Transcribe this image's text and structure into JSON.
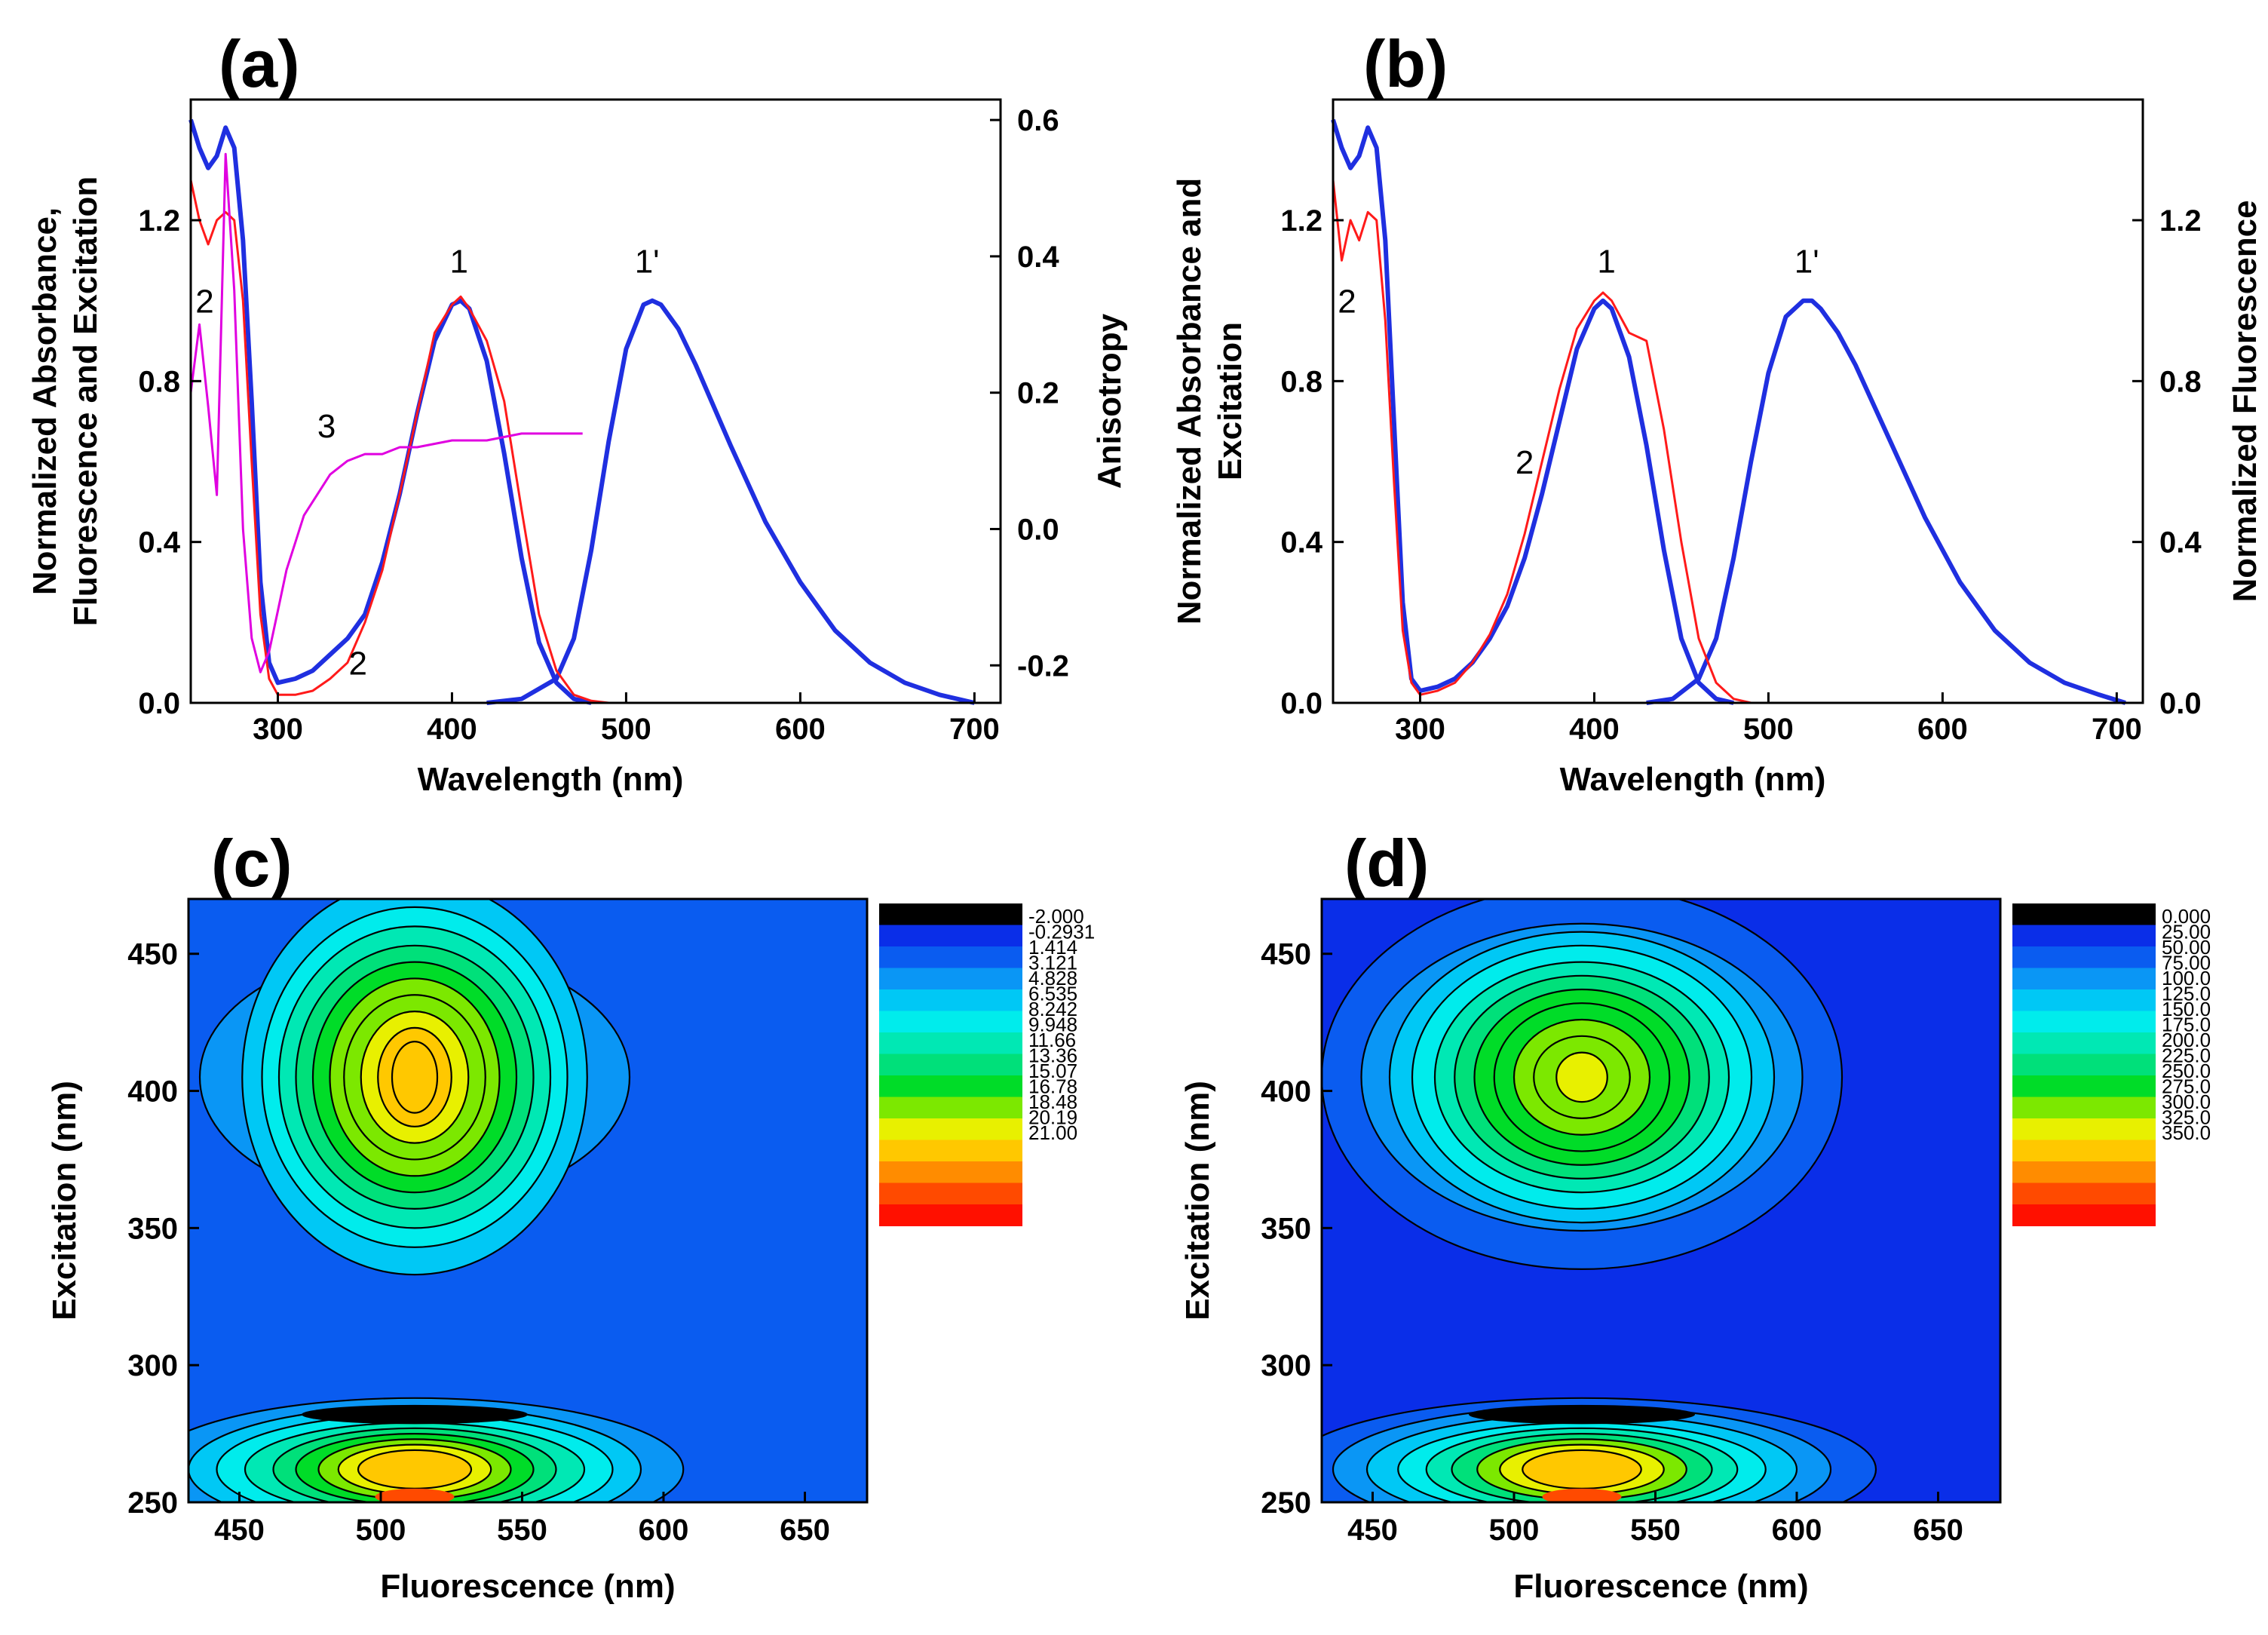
{
  "chart_data": [
    {
      "panel_label": "(a)",
      "type": "line",
      "xlabel": "Wavelength (nm)",
      "ylabel_lines": [
        "Normalized Absorbance,",
        "Fluorescence and Excitation"
      ],
      "y2label": "Anisotropy",
      "xlim": [
        250,
        715
      ],
      "ylim": [
        0,
        1.5
      ],
      "y2lim": [
        -0.255,
        0.63
      ],
      "xticks": [
        "300",
        "400",
        "500",
        "600",
        "700"
      ],
      "yticks": [
        "0.0",
        "0.4",
        "0.8",
        "1.2"
      ],
      "y2ticks": [
        "-0.2",
        "0.0",
        "0.2",
        "0.4",
        "0.6"
      ],
      "grid": false,
      "series": [
        {
          "id": "absorbance",
          "color": "#1f2fe0",
          "axis": "left",
          "x": [
            250,
            255,
            260,
            265,
            270,
            275,
            280,
            285,
            290,
            295,
            300,
            310,
            320,
            330,
            340,
            350,
            360,
            370,
            380,
            390,
            400,
            405,
            410,
            420,
            430,
            440,
            450,
            460,
            470,
            480
          ],
          "y": [
            1.45,
            1.38,
            1.33,
            1.36,
            1.43,
            1.38,
            1.15,
            0.75,
            0.3,
            0.1,
            0.05,
            0.06,
            0.08,
            0.12,
            0.16,
            0.22,
            0.35,
            0.52,
            0.72,
            0.9,
            0.99,
            1.0,
            0.98,
            0.85,
            0.62,
            0.36,
            0.15,
            0.05,
            0.01,
            0.0
          ]
        },
        {
          "id": "fluorescence",
          "color": "#1f2fe0",
          "axis": "left",
          "x": [
            420,
            440,
            460,
            470,
            480,
            490,
            500,
            510,
            515,
            520,
            530,
            540,
            560,
            580,
            600,
            620,
            640,
            660,
            680,
            700
          ],
          "y": [
            0.0,
            0.01,
            0.06,
            0.16,
            0.38,
            0.65,
            0.88,
            0.99,
            1.0,
            0.99,
            0.93,
            0.84,
            0.64,
            0.45,
            0.3,
            0.18,
            0.1,
            0.05,
            0.02,
            0.0
          ]
        },
        {
          "id": "excitation",
          "label": "2",
          "color": "#ff1a1a",
          "axis": "left",
          "x": [
            250,
            255,
            260,
            265,
            270,
            275,
            280,
            285,
            290,
            295,
            300,
            310,
            320,
            330,
            340,
            350,
            360,
            370,
            380,
            390,
            400,
            405,
            410,
            420,
            430,
            440,
            450,
            460,
            470,
            480,
            490,
            500
          ],
          "y": [
            1.3,
            1.2,
            1.14,
            1.2,
            1.22,
            1.2,
            1.0,
            0.6,
            0.22,
            0.06,
            0.02,
            0.02,
            0.03,
            0.06,
            0.1,
            0.2,
            0.33,
            0.52,
            0.72,
            0.92,
            0.99,
            1.01,
            0.98,
            0.9,
            0.75,
            0.48,
            0.22,
            0.08,
            0.02,
            0.005,
            0.0,
            0.0
          ]
        },
        {
          "id": "anisotropy",
          "label": "3",
          "color": "#e000e0",
          "axis": "right",
          "x": [
            250,
            255,
            260,
            265,
            270,
            275,
            280,
            285,
            290,
            295,
            300,
            305,
            310,
            315,
            320,
            330,
            340,
            350,
            360,
            370,
            380,
            400,
            420,
            440,
            460,
            475
          ],
          "y": [
            0.2,
            0.3,
            0.18,
            0.05,
            0.55,
            0.35,
            0.0,
            -0.16,
            -0.21,
            -0.18,
            -0.12,
            -0.06,
            -0.02,
            0.02,
            0.04,
            0.08,
            0.1,
            0.11,
            0.11,
            0.12,
            0.12,
            0.13,
            0.13,
            0.14,
            0.14,
            0.14
          ]
        }
      ],
      "annotations": [
        {
          "text": "1",
          "x": 404,
          "y": 1.07
        },
        {
          "text": "1'",
          "x": 512,
          "y": 1.07
        },
        {
          "text": "2",
          "x": 258,
          "y": 0.97
        },
        {
          "text": "2",
          "x": 346,
          "y": 0.07
        },
        {
          "text": "3",
          "x": 328,
          "y": 0.66
        }
      ]
    },
    {
      "panel_label": "(b)",
      "type": "line",
      "xlabel": "Wavelength (nm)",
      "ylabel_lines": [
        "Normalized Absorbance and",
        "Excitation"
      ],
      "y2label": "Normalized Fluorescence",
      "xlim": [
        250,
        715
      ],
      "ylim": [
        0,
        1.5
      ],
      "y2lim": [
        0,
        1.5
      ],
      "xticks": [
        "300",
        "400",
        "500",
        "600",
        "700"
      ],
      "yticks": [
        "0.0",
        "0.4",
        "0.8",
        "1.2"
      ],
      "y2ticks": [
        "0.0",
        "0.4",
        "0.8",
        "1.2"
      ],
      "grid": false,
      "series": [
        {
          "id": "absorbance",
          "color": "#1f2fe0",
          "axis": "left",
          "x": [
            250,
            255,
            260,
            265,
            270,
            275,
            280,
            285,
            290,
            295,
            300,
            310,
            320,
            330,
            340,
            350,
            360,
            370,
            380,
            390,
            400,
            405,
            410,
            420,
            430,
            440,
            450,
            460,
            470,
            480
          ],
          "y": [
            1.45,
            1.38,
            1.33,
            1.36,
            1.43,
            1.38,
            1.15,
            0.7,
            0.25,
            0.06,
            0.03,
            0.04,
            0.06,
            0.1,
            0.16,
            0.24,
            0.36,
            0.52,
            0.7,
            0.88,
            0.98,
            1.0,
            0.98,
            0.86,
            0.64,
            0.38,
            0.16,
            0.05,
            0.01,
            0.0
          ]
        },
        {
          "id": "fluorescence",
          "color": "#1f2fe0",
          "axis": "right",
          "x": [
            430,
            445,
            460,
            470,
            480,
            490,
            500,
            510,
            520,
            525,
            530,
            540,
            550,
            570,
            590,
            610,
            630,
            650,
            670,
            690,
            705
          ],
          "y": [
            0.0,
            0.01,
            0.06,
            0.16,
            0.36,
            0.6,
            0.82,
            0.96,
            1.0,
            1.0,
            0.98,
            0.92,
            0.84,
            0.65,
            0.46,
            0.3,
            0.18,
            0.1,
            0.05,
            0.02,
            0.0
          ]
        },
        {
          "id": "excitation",
          "label": "2",
          "color": "#ff1a1a",
          "axis": "left",
          "x": [
            250,
            255,
            260,
            265,
            270,
            275,
            280,
            285,
            290,
            295,
            300,
            310,
            320,
            330,
            340,
            350,
            360,
            370,
            380,
            390,
            400,
            405,
            410,
            420,
            430,
            440,
            450,
            460,
            470,
            480,
            490,
            500
          ],
          "y": [
            1.3,
            1.1,
            1.2,
            1.15,
            1.22,
            1.2,
            0.95,
            0.55,
            0.18,
            0.05,
            0.02,
            0.03,
            0.05,
            0.1,
            0.17,
            0.27,
            0.42,
            0.6,
            0.78,
            0.93,
            1.0,
            1.02,
            1.0,
            0.92,
            0.9,
            0.68,
            0.4,
            0.16,
            0.05,
            0.01,
            0.0,
            0.0
          ]
        }
      ],
      "annotations": [
        {
          "text": "1",
          "x": 407,
          "y": 1.07
        },
        {
          "text": "1'",
          "x": 522,
          "y": 1.07
        },
        {
          "text": "2",
          "x": 258,
          "y": 0.97
        },
        {
          "text": "2",
          "x": 360,
          "y": 0.57
        }
      ]
    },
    {
      "panel_label": "(c)",
      "type": "heatmap",
      "xlabel": "Fluorescence (nm)",
      "ylabel": "Excitation (nm)",
      "xlim": [
        432,
        672
      ],
      "ylim": [
        250,
        470
      ],
      "xticks": [
        "450",
        "500",
        "550",
        "600",
        "650"
      ],
      "yticks": [
        "250",
        "300",
        "350",
        "400",
        "450"
      ],
      "background": "#0a5cf0",
      "colorbar": {
        "labels": [
          "-2.000",
          "-0.2931",
          "1.414",
          "3.121",
          "4.828",
          "6.535",
          "8.242",
          "9.948",
          "11.66",
          "13.36",
          "15.07",
          "16.78",
          "18.48",
          "20.19",
          "21.00"
        ],
        "colors": [
          "#000000",
          "#0a2ee8",
          "#0a5cf0",
          "#0a96f5",
          "#00c8f5",
          "#00ecec",
          "#00e8b4",
          "#00e07a",
          "#00dc28",
          "#7ce800",
          "#e8f000",
          "#ffc800",
          "#ff8c00",
          "#ff4a00",
          "#ff1000"
        ]
      },
      "peaks": [
        {
          "center": [
            512,
            405
          ],
          "semi_axes": [
            [
              76,
              47
            ],
            [
              61,
              72
            ],
            [
              54,
              62
            ],
            [
              48,
              55
            ],
            [
              42,
              48
            ],
            [
              36,
              42
            ],
            [
              30,
              36
            ],
            [
              25,
              30
            ],
            [
              19,
              24
            ],
            [
              13,
              18
            ],
            [
              8,
              13
            ]
          ],
          "colors": [
            "#0a96f5",
            "#00c8f5",
            "#00ecec",
            "#00e8b4",
            "#00e07a",
            "#00dc28",
            "#7ce800",
            "#7ce800",
            "#e8f000",
            "#ffc800",
            "#ffc800"
          ]
        },
        {
          "center": [
            512,
            262
          ],
          "semi_axes": [
            [
              95,
              26
            ],
            [
              80,
              23
            ],
            [
              70,
              20
            ],
            [
              60,
              17
            ],
            [
              50,
              15
            ],
            [
              42,
              13
            ],
            [
              34,
              11
            ],
            [
              27,
              9
            ],
            [
              20,
              7
            ]
          ],
          "colors": [
            "#0a96f5",
            "#00c8f5",
            "#00ecec",
            "#00e8b4",
            "#00e07a",
            "#00dc28",
            "#7ce800",
            "#e8f000",
            "#ffc800"
          ]
        }
      ]
    },
    {
      "panel_label": "(d)",
      "type": "heatmap",
      "xlabel": "Fluorescence (nm)",
      "ylabel": "Excitation (nm)",
      "xlim": [
        432,
        672
      ],
      "ylim": [
        250,
        470
      ],
      "xticks": [
        "450",
        "500",
        "550",
        "600",
        "650"
      ],
      "yticks": [
        "250",
        "300",
        "350",
        "400",
        "450"
      ],
      "background": "#0a2ee8",
      "colorbar": {
        "labels": [
          "0.000",
          "25.00",
          "50.00",
          "75.00",
          "100.0",
          "125.0",
          "150.0",
          "175.0",
          "200.0",
          "225.0",
          "250.0",
          "275.0",
          "300.0",
          "325.0",
          "350.0"
        ],
        "colors": [
          "#000000",
          "#0a2ee8",
          "#0a5cf0",
          "#0a96f5",
          "#00c8f5",
          "#00ecec",
          "#00e8b4",
          "#00e07a",
          "#00dc28",
          "#7ce800",
          "#e8f000",
          "#ffc800",
          "#ff8c00",
          "#ff4a00",
          "#ff1000"
        ]
      },
      "peaks": [
        {
          "center": [
            524,
            405
          ],
          "semi_axes": [
            [
              92,
              70
            ],
            [
              78,
              56
            ],
            [
              68,
              53
            ],
            [
              60,
              48
            ],
            [
              52,
              42
            ],
            [
              45,
              37
            ],
            [
              38,
              32
            ],
            [
              31,
              27
            ],
            [
              24,
              21
            ],
            [
              17,
              15
            ],
            [
              9,
              9
            ]
          ],
          "colors": [
            "#0a5cf0",
            "#0a96f5",
            "#00c8f5",
            "#00ecec",
            "#00e8b4",
            "#00e07a",
            "#00dc28",
            "#00dc28",
            "#7ce800",
            "#7ce800",
            "#e8f000"
          ]
        },
        {
          "center": [
            524,
            262
          ],
          "semi_axes": [
            [
              104,
              26
            ],
            [
              88,
              23
            ],
            [
              76,
              20
            ],
            [
              65,
              17
            ],
            [
              55,
              15
            ],
            [
              46,
              13
            ],
            [
              37,
              11
            ],
            [
              29,
              9
            ],
            [
              21,
              7
            ]
          ],
          "colors": [
            "#0a5cf0",
            "#0a96f5",
            "#00c8f5",
            "#00ecec",
            "#00e8b4",
            "#00e07a",
            "#7ce800",
            "#e8f000",
            "#ffc800"
          ]
        }
      ]
    }
  ]
}
